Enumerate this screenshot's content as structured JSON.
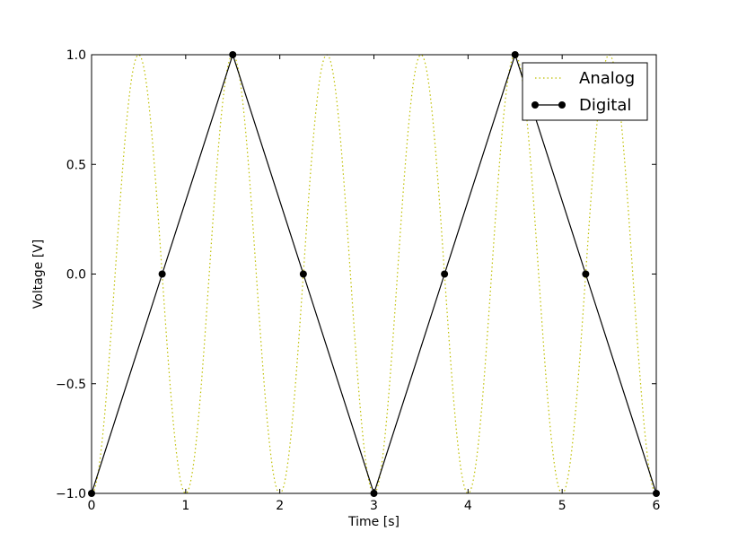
{
  "chart_data": {
    "type": "line",
    "title": "",
    "xlabel": "Time [s]",
    "ylabel": "Voltage [V]",
    "xlim": [
      0,
      6
    ],
    "ylim": [
      -1.0,
      1.0
    ],
    "xticks": [
      0,
      1,
      2,
      3,
      4,
      5,
      6
    ],
    "xtick_labels": [
      "0",
      "1",
      "2",
      "3",
      "4",
      "5",
      "6"
    ],
    "yticks": [
      -1.0,
      -0.5,
      0.0,
      0.5,
      1.0
    ],
    "ytick_labels": [
      "−1.0",
      "−0.5",
      "0.0",
      "0.5",
      "1.0"
    ],
    "grid": false,
    "legend_position": "top-right",
    "series": [
      {
        "name": "Analog",
        "style": "dotted",
        "color": "#bfbf00",
        "function": "-cos(2*pi*t)",
        "frequency_hz": 1.0
      },
      {
        "name": "Digital",
        "style": "solid-markers",
        "color": "#000000",
        "x": [
          0,
          0.75,
          1.5,
          2.25,
          3.0,
          3.75,
          4.5,
          5.25,
          6.0
        ],
        "y": [
          -1.0,
          0.0,
          1.0,
          0.0,
          -1.0,
          0.0,
          1.0,
          0.0,
          -1.0
        ]
      }
    ]
  }
}
